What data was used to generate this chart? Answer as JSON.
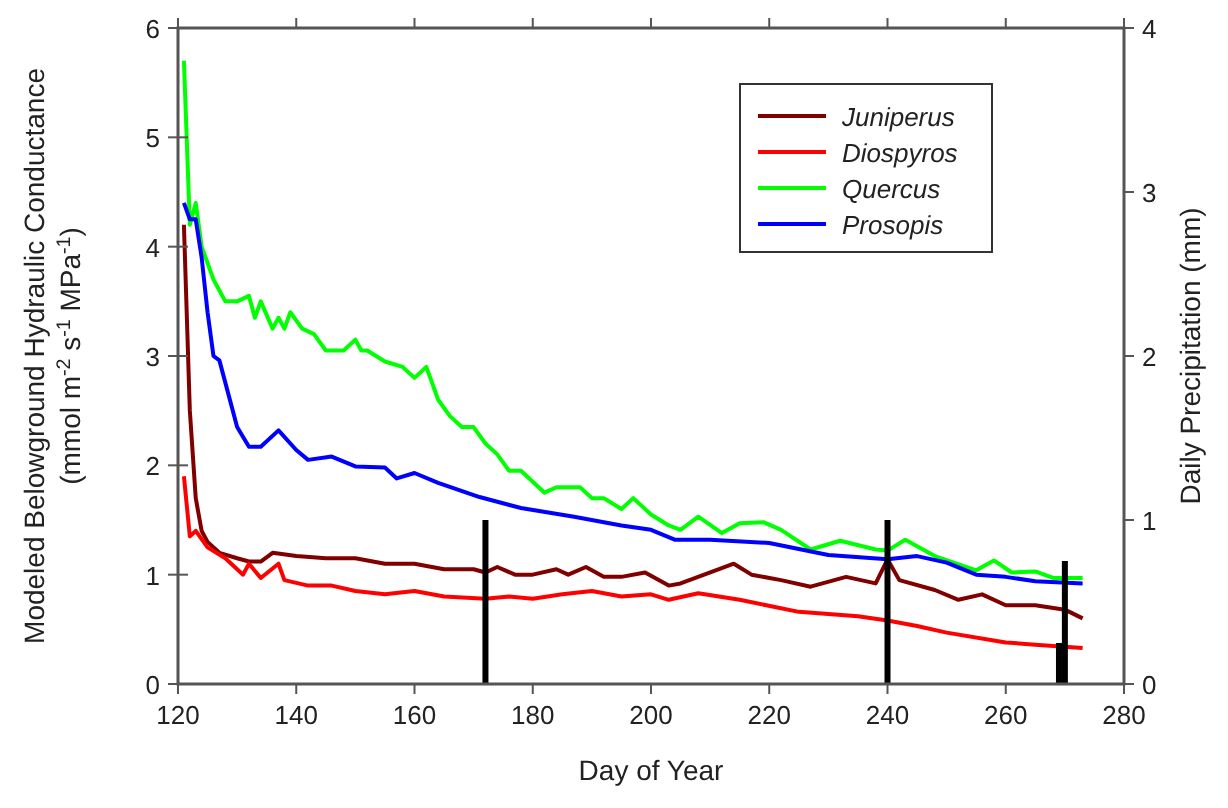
{
  "chart_data": {
    "type": "line",
    "xlabel": "Day of Year",
    "ylabel": "Modeled Belowground Hydraulic Conductance (mmol m$^{-2}$ s$^{-1}$ MPa$^{-1}$)",
    "y2label": "Daily Precipitation (mm)",
    "xlim": [
      120,
      280
    ],
    "xticks": [
      120,
      140,
      160,
      180,
      200,
      220,
      240,
      260,
      280
    ],
    "ylim": [
      0,
      6
    ],
    "yticks": [
      0,
      1,
      2,
      3,
      4,
      5,
      6
    ],
    "y2lim": [
      0,
      4
    ],
    "y2ticks": [
      0,
      1,
      2,
      3,
      4
    ],
    "legend": "top right",
    "grid": false,
    "series": [
      {
        "name": "Juniperus",
        "color": "#800000",
        "x": [
          121,
          122,
          123,
          124,
          125,
          127,
          130,
          132,
          134,
          136,
          140,
          145,
          150,
          155,
          160,
          165,
          170,
          172,
          174,
          177,
          180,
          184,
          186,
          189,
          192,
          195,
          199,
          203,
          205,
          209,
          214,
          217,
          222,
          227,
          233,
          238,
          240,
          242,
          248,
          252,
          256,
          260,
          265,
          270,
          273
        ],
        "values": [
          4.2,
          2.5,
          1.7,
          1.4,
          1.3,
          1.2,
          1.15,
          1.12,
          1.12,
          1.2,
          1.17,
          1.15,
          1.15,
          1.1,
          1.1,
          1.05,
          1.05,
          1.02,
          1.07,
          1.0,
          1.0,
          1.05,
          1.0,
          1.07,
          0.98,
          0.98,
          1.02,
          0.9,
          0.92,
          1.0,
          1.1,
          1.0,
          0.95,
          0.89,
          0.98,
          0.92,
          1.14,
          0.95,
          0.86,
          0.77,
          0.82,
          0.72,
          0.72,
          0.68,
          0.6
        ]
      },
      {
        "name": "Diospyros",
        "color": "#ff0000",
        "x": [
          121,
          122,
          123,
          125,
          128,
          131,
          132,
          134,
          137,
          138,
          142,
          146,
          150,
          155,
          160,
          165,
          172,
          176,
          180,
          185,
          190,
          195,
          200,
          203,
          208,
          215,
          225,
          235,
          240,
          245,
          250,
          260,
          265,
          273
        ],
        "values": [
          1.9,
          1.35,
          1.4,
          1.25,
          1.15,
          1.0,
          1.1,
          0.97,
          1.1,
          0.95,
          0.9,
          0.9,
          0.85,
          0.82,
          0.85,
          0.8,
          0.78,
          0.8,
          0.78,
          0.82,
          0.85,
          0.8,
          0.82,
          0.77,
          0.83,
          0.77,
          0.66,
          0.62,
          0.58,
          0.53,
          0.47,
          0.38,
          0.36,
          0.33
        ]
      },
      {
        "name": "Quercus",
        "color": "#00ff00",
        "x": [
          121,
          122,
          123,
          124,
          126,
          128,
          130,
          132,
          133,
          134,
          136,
          137,
          138,
          139,
          141,
          143,
          145,
          148,
          150,
          151,
          152,
          155,
          158,
          160,
          162,
          164,
          166,
          168,
          170,
          172,
          174,
          176,
          178,
          180,
          182,
          184,
          186,
          188,
          190,
          192,
          195,
          197,
          200,
          203,
          205,
          208,
          212,
          215,
          219,
          222,
          227,
          232,
          238,
          240,
          243,
          248,
          255,
          258,
          261,
          265,
          268,
          273
        ],
        "values": [
          5.7,
          4.2,
          4.4,
          4.0,
          3.7,
          3.5,
          3.5,
          3.55,
          3.35,
          3.5,
          3.25,
          3.35,
          3.25,
          3.4,
          3.25,
          3.2,
          3.05,
          3.05,
          3.15,
          3.05,
          3.05,
          2.95,
          2.9,
          2.8,
          2.9,
          2.6,
          2.45,
          2.35,
          2.35,
          2.2,
          2.1,
          1.95,
          1.95,
          1.85,
          1.75,
          1.8,
          1.8,
          1.8,
          1.7,
          1.7,
          1.6,
          1.7,
          1.55,
          1.45,
          1.41,
          1.53,
          1.38,
          1.47,
          1.48,
          1.41,
          1.23,
          1.31,
          1.23,
          1.22,
          1.32,
          1.17,
          1.04,
          1.13,
          1.02,
          1.03,
          0.97,
          0.97
        ]
      },
      {
        "name": "Prosopis",
        "color": "#0000ff",
        "x": [
          121,
          122,
          123,
          124,
          125,
          126,
          127,
          130,
          132,
          134,
          137,
          140,
          142,
          146,
          150,
          155,
          157,
          160,
          164,
          171,
          178,
          187,
          195,
          200,
          204,
          210,
          220,
          230,
          240,
          245,
          250,
          255,
          260,
          265,
          273
        ],
        "values": [
          4.4,
          4.25,
          4.25,
          3.9,
          3.4,
          3.0,
          2.96,
          2.35,
          2.17,
          2.17,
          2.32,
          2.14,
          2.05,
          2.08,
          1.99,
          1.98,
          1.88,
          1.93,
          1.84,
          1.71,
          1.61,
          1.53,
          1.45,
          1.41,
          1.32,
          1.32,
          1.29,
          1.18,
          1.14,
          1.17,
          1.11,
          1.0,
          0.98,
          0.94,
          0.92
        ]
      },
      {
        "type": "bar",
        "axis": "y2",
        "color": "#000000",
        "x": [
          172,
          240,
          269,
          270
        ],
        "values": [
          1.0,
          1.0,
          0.25,
          0.75
        ]
      }
    ]
  }
}
